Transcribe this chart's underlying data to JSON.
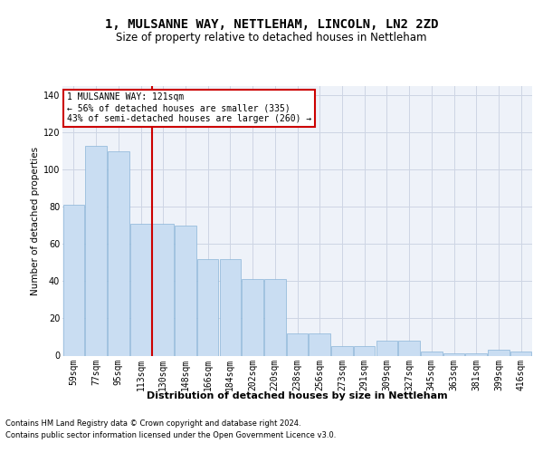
{
  "title": "1, MULSANNE WAY, NETTLEHAM, LINCOLN, LN2 2ZD",
  "subtitle": "Size of property relative to detached houses in Nettleham",
  "xlabel": "Distribution of detached houses by size in Nettleham",
  "ylabel": "Number of detached properties",
  "categories": [
    "59sqm",
    "77sqm",
    "95sqm",
    "113sqm",
    "130sqm",
    "148sqm",
    "166sqm",
    "184sqm",
    "202sqm",
    "220sqm",
    "238sqm",
    "256sqm",
    "273sqm",
    "291sqm",
    "309sqm",
    "327sqm",
    "345sqm",
    "363sqm",
    "381sqm",
    "399sqm",
    "416sqm"
  ],
  "values": [
    81,
    113,
    110,
    71,
    71,
    70,
    52,
    52,
    41,
    41,
    12,
    12,
    5,
    5,
    8,
    8,
    2,
    1,
    1,
    3,
    2
  ],
  "bar_color": "#c9ddf2",
  "bar_edge_color": "#8ab4d8",
  "grid_color": "#cdd5e4",
  "background_color": "#eef2f9",
  "annotation_text": "1 MULSANNE WAY: 121sqm\n← 56% of detached houses are smaller (335)\n43% of semi-detached houses are larger (260) →",
  "annotation_box_color": "#ffffff",
  "annotation_box_edge_color": "#cc0000",
  "vline_index": 3,
  "vline_color": "#cc0000",
  "ylim": [
    0,
    145
  ],
  "yticks": [
    0,
    20,
    40,
    60,
    80,
    100,
    120,
    140
  ],
  "footer_line1": "Contains HM Land Registry data © Crown copyright and database right 2024.",
  "footer_line2": "Contains public sector information licensed under the Open Government Licence v3.0.",
  "title_fontsize": 10,
  "subtitle_fontsize": 8.5,
  "xlabel_fontsize": 8,
  "ylabel_fontsize": 7.5,
  "tick_fontsize": 7,
  "annotation_fontsize": 7,
  "footer_fontsize": 6
}
